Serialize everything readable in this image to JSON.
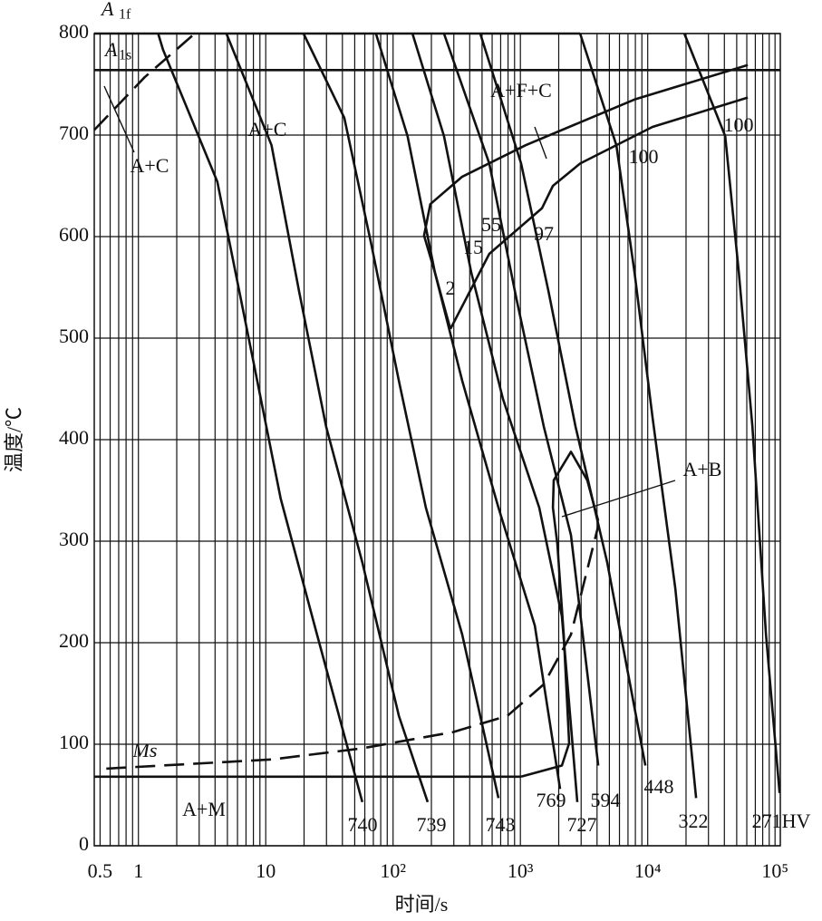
{
  "chart_data": {
    "type": "line",
    "xlabel": "时间/s",
    "ylabel": "温度/℃",
    "xscale": "log",
    "color": "#111111",
    "xlim": [
      0.45,
      110000
    ],
    "ylim": [
      0,
      800
    ],
    "xticks": [
      0.5,
      1,
      10,
      {
        "value": 100,
        "label": "10²"
      },
      {
        "value": 1000,
        "label": "10³"
      },
      {
        "value": 10000,
        "label": "10⁴"
      },
      {
        "value": 100000,
        "label": "10⁵"
      }
    ],
    "xgrid_minor": [
      0.6,
      0.7,
      0.8,
      0.9,
      2,
      3,
      4,
      5,
      6,
      7,
      8,
      9,
      20,
      30,
      40,
      50,
      60,
      70,
      80,
      90,
      200,
      300,
      400,
      500,
      600,
      700,
      800,
      900,
      2000,
      3000,
      4000,
      5000,
      6000,
      7000,
      8000,
      9000,
      20000,
      30000,
      40000,
      50000,
      60000,
      70000,
      80000,
      90000
    ],
    "yticks": [
      0,
      100,
      200,
      300,
      400,
      500,
      600,
      700,
      800
    ],
    "grid": true,
    "series": [
      {
        "label": "740",
        "x": [
          1.43,
          1.56,
          4.17,
          8.03,
          13.1,
          25.3,
          57.4
        ],
        "values": [
          800,
          784,
          654,
          476,
          342,
          208,
          43
        ]
      },
      {
        "label": "739",
        "x": [
          4.91,
          11.1,
          18.2,
          29.8,
          57.4,
          111,
          187
        ],
        "values": [
          800,
          690,
          547,
          413,
          279,
          128,
          43
        ]
      },
      {
        "label": "743",
        "x": [
          19.8,
          41.4,
          67.6,
          111,
          181,
          349,
          673
        ],
        "values": [
          800,
          717,
          592,
          458,
          333,
          208,
          47
        ]
      },
      {
        "label": "769",
        "x": [
          73.4,
          130,
          213,
          349,
          673,
          1297,
          2050
        ],
        "values": [
          800,
          699,
          565,
          458,
          333,
          217,
          56
        ]
      },
      {
        "label": "727",
        "x": [
          142,
          251,
          411,
          730,
          1406,
          2120,
          2800
        ],
        "values": [
          800,
          699,
          565,
          440,
          333,
          226,
          43
        ]
      },
      {
        "label": "594",
        "x": [
          251,
          570,
          933,
          1527,
          2497,
          4085
        ],
        "values": [
          800,
          672,
          538,
          413,
          306,
          79
        ]
      },
      {
        "label": "448",
        "x": [
          484,
          1013,
          1657,
          2710,
          4810,
          9580
        ],
        "values": [
          800,
          672,
          547,
          413,
          279,
          79
        ]
      },
      {
        "label": "322",
        "x": [
          2943,
          5670,
          7870,
          10900,
          16500,
          24000
        ],
        "values": [
          800,
          690,
          565,
          422,
          253,
          47
        ]
      },
      {
        "label": "271HV",
        "x": [
          19400,
          40600,
          51900,
          66400,
          84900,
          108600
        ],
        "values": [
          800,
          699,
          565,
          413,
          208,
          52
        ]
      },
      {
        "x": [
          0.45,
          2943
        ],
        "values": [
          800,
          800
        ]
      },
      {
        "x": [
          0.45,
          110000
        ],
        "values": [
          764,
          764
        ]
      },
      {
        "x": [
          0.45,
          1013
        ],
        "values": [
          68,
          68
        ]
      },
      {
        "x": [
          61100,
          7870,
          1099,
          349,
          196,
          175,
          213,
          260,
          282
        ],
        "values": [
          769,
          735,
          690,
          659,
          632,
          601,
          565,
          525,
          509
        ]
      },
      {
        "x": [
          282,
          570,
          1479,
          1800,
          2943,
          10900,
          61100
        ],
        "values": [
          509,
          583,
          628,
          650,
          672,
          708,
          737
        ]
      },
      {
        "x": [
          1013,
          2120,
          2416,
          2190,
          1953,
          1800,
          1829,
          2497,
          3350,
          4085
        ],
        "values": [
          68,
          79,
          101,
          208,
          297,
          333,
          360,
          388,
          360,
          320
        ]
      },
      {
        "dashed": true,
        "x": [
          0.56,
          11.1,
          57.4,
          296,
          792,
          1527,
          2497,
          4085
        ],
        "values": [
          76,
          85,
          96,
          112,
          128,
          159,
          208,
          315
        ]
      },
      {
        "dashed": true,
        "x": [
          0.45,
          1.12,
          2.77
        ],
        "values": [
          705,
          757,
          800
        ]
      }
    ],
    "annotations": [
      "A+C",
      "A+C",
      "A+F+C",
      "A+B",
      "A+M",
      "Ms",
      "2",
      "15",
      "55",
      "97",
      "100",
      "100"
    ],
    "line_labels": [
      "A",
      "1f",
      "A",
      "1s"
    ]
  }
}
